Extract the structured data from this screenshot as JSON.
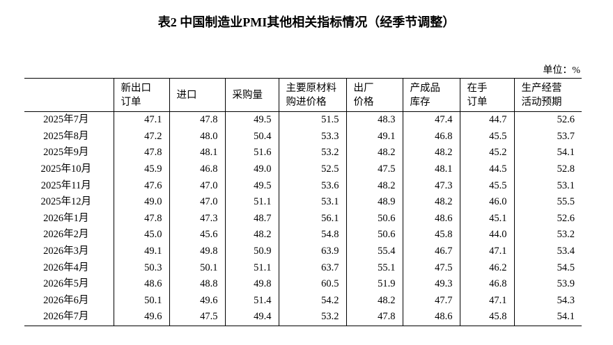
{
  "title": "表2 中国制造业PMI其他相关指标情况（经季节调整）",
  "unit": "单位：%",
  "headers": [
    [
      "新出口",
      "订单"
    ],
    [
      "进口"
    ],
    [
      "采购量"
    ],
    [
      "主要原材料",
      "购进价格"
    ],
    [
      "出厂",
      "价格"
    ],
    [
      "产成品",
      "库存"
    ],
    [
      "在手",
      "订单"
    ],
    [
      "生产经营",
      "活动预期"
    ]
  ],
  "rows": [
    [
      "2025年7月",
      "47.1",
      "47.8",
      "49.5",
      "51.5",
      "48.3",
      "47.4",
      "44.7",
      "52.6"
    ],
    [
      "2025年8月",
      "47.2",
      "48.0",
      "50.4",
      "53.3",
      "49.1",
      "46.8",
      "45.5",
      "53.7"
    ],
    [
      "2025年9月",
      "47.8",
      "48.1",
      "51.6",
      "53.2",
      "48.2",
      "48.2",
      "45.2",
      "54.1"
    ],
    [
      "2025年10月",
      "45.9",
      "46.8",
      "49.0",
      "52.5",
      "47.5",
      "48.1",
      "44.5",
      "52.8"
    ],
    [
      "2025年11月",
      "47.6",
      "47.0",
      "49.5",
      "53.6",
      "48.2",
      "47.3",
      "45.5",
      "53.1"
    ],
    [
      "2025年12月",
      "49.0",
      "47.0",
      "51.1",
      "53.1",
      "48.9",
      "48.2",
      "46.0",
      "55.5"
    ],
    [
      "2026年1月",
      "47.8",
      "47.3",
      "48.7",
      "56.1",
      "50.6",
      "48.6",
      "45.1",
      "52.6"
    ],
    [
      "2026年2月",
      "45.0",
      "45.6",
      "48.2",
      "54.8",
      "50.6",
      "45.8",
      "44.0",
      "53.2"
    ],
    [
      "2026年3月",
      "49.1",
      "49.8",
      "50.9",
      "63.9",
      "55.4",
      "46.7",
      "47.1",
      "53.4"
    ],
    [
      "2026年4月",
      "50.3",
      "50.1",
      "51.1",
      "63.7",
      "55.1",
      "47.5",
      "46.2",
      "54.5"
    ],
    [
      "2026年5月",
      "48.6",
      "48.8",
      "49.8",
      "60.5",
      "51.9",
      "49.3",
      "46.8",
      "53.9"
    ],
    [
      "2026年6月",
      "50.1",
      "49.6",
      "51.4",
      "54.2",
      "48.2",
      "47.7",
      "47.1",
      "54.3"
    ],
    [
      "2026年7月",
      "49.6",
      "47.5",
      "49.4",
      "53.2",
      "47.8",
      "48.6",
      "45.8",
      "54.1"
    ]
  ]
}
